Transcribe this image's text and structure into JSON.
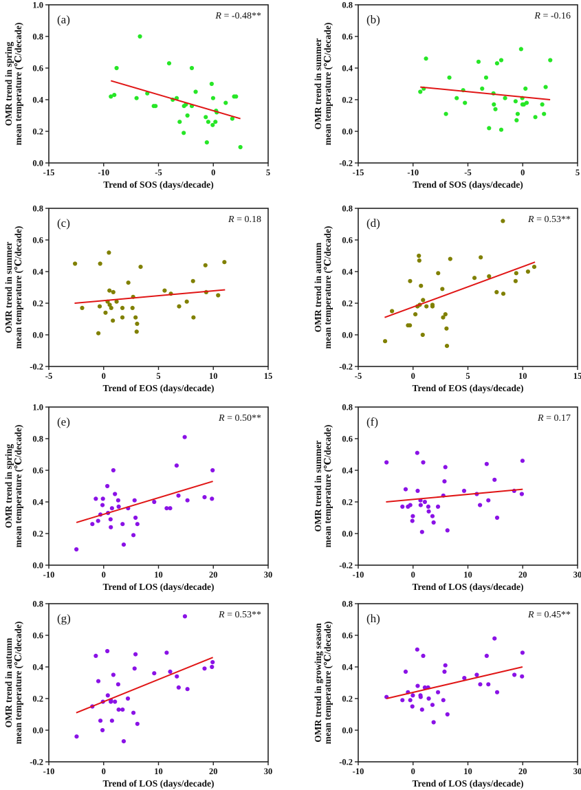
{
  "colors": {
    "green": "#27e627",
    "olive": "#808000",
    "purple": "#8a12e6",
    "fit_line": "#e01515"
  },
  "chart_data": [
    {
      "type": "scatter",
      "panel": "(a)",
      "r_symbol": "R",
      "r_value": " = -0.48**",
      "color": "green",
      "xlabel": "Trend of SOS (days/decade)",
      "ylabel": [
        "OMR trend in spring",
        "mean temperature (℃/decade)"
      ],
      "xlim": [
        -15,
        5
      ],
      "ylim": [
        0,
        1.0
      ],
      "xticks": [
        "-15",
        "-10",
        "-5",
        "0",
        "5"
      ],
      "yticks": [
        "0.0",
        "0.2",
        "0.4",
        "0.6",
        "0.8",
        "1.0"
      ],
      "fit_line": [
        [
          -9.34,
          0.52
        ],
        [
          2.47,
          0.28
        ]
      ],
      "points": [
        [
          -6.69,
          0.8
        ],
        [
          -8.82,
          0.6
        ],
        [
          -4.03,
          0.63
        ],
        [
          -1.96,
          0.6
        ],
        [
          -9.34,
          0.42
        ],
        [
          -9.03,
          0.43
        ],
        [
          -7.0,
          0.41
        ],
        [
          -6.02,
          0.44
        ],
        [
          -5.43,
          0.36
        ],
        [
          -5.27,
          0.36
        ],
        [
          -3.7,
          0.4
        ],
        [
          -3.34,
          0.41
        ],
        [
          -2.67,
          0.36
        ],
        [
          -2.5,
          0.37
        ],
        [
          -1.96,
          0.36
        ],
        [
          -1.61,
          0.45
        ],
        [
          -0.15,
          0.5
        ],
        [
          -0.02,
          0.41
        ],
        [
          -2.36,
          0.3
        ],
        [
          -3.07,
          0.26
        ],
        [
          -2.7,
          0.19
        ],
        [
          -0.69,
          0.29
        ],
        [
          -0.46,
          0.26
        ],
        [
          -0.06,
          0.24
        ],
        [
          0.19,
          0.26
        ],
        [
          0.25,
          0.33
        ],
        [
          0.31,
          0.32
        ],
        [
          -0.59,
          0.13
        ],
        [
          1.13,
          0.38
        ],
        [
          1.73,
          0.28
        ],
        [
          1.9,
          0.42
        ],
        [
          2.07,
          0.42
        ],
        [
          2.47,
          0.1
        ]
      ]
    },
    {
      "type": "scatter",
      "panel": "(b)",
      "r_symbol": "R",
      "r_value": " = -0.16",
      "color": "green",
      "xlabel": "Trend of SOS (days/decade)",
      "ylabel": [
        "OMR trend in summer",
        "mean temperature (℃/decade)"
      ],
      "xlim": [
        -15,
        5
      ],
      "ylim": [
        -0.2,
        0.8
      ],
      "xticks": [
        "-15",
        "-10",
        "-5",
        "0",
        "5"
      ],
      "yticks": [
        "-0.2",
        "0.0",
        "0.2",
        "0.4",
        "0.6",
        "0.8"
      ],
      "fit_line": [
        [
          -9.34,
          0.28
        ],
        [
          2.5,
          0.2
        ]
      ],
      "points": [
        [
          -8.82,
          0.46
        ],
        [
          -9.34,
          0.25
        ],
        [
          -9.03,
          0.27
        ],
        [
          -6.69,
          0.34
        ],
        [
          -7.0,
          0.11
        ],
        [
          -6.02,
          0.21
        ],
        [
          -5.43,
          0.26
        ],
        [
          -5.27,
          0.18
        ],
        [
          -4.03,
          0.44
        ],
        [
          -3.7,
          0.27
        ],
        [
          -3.34,
          0.34
        ],
        [
          -3.07,
          0.02
        ],
        [
          -2.67,
          0.24
        ],
        [
          -2.63,
          0.17
        ],
        [
          -2.49,
          0.14
        ],
        [
          -2.34,
          0.43
        ],
        [
          -1.96,
          0.45
        ],
        [
          -1.96,
          0.01
        ],
        [
          -1.61,
          0.21
        ],
        [
          -0.65,
          0.19
        ],
        [
          -0.15,
          0.52
        ],
        [
          -0.04,
          0.21
        ],
        [
          -0.02,
          0.17
        ],
        [
          0.1,
          0.17
        ],
        [
          0.36,
          0.18
        ],
        [
          0.25,
          0.27
        ],
        [
          -0.46,
          0.11
        ],
        [
          -0.56,
          0.07
        ],
        [
          1.15,
          0.09
        ],
        [
          1.78,
          0.17
        ],
        [
          1.94,
          0.11
        ],
        [
          2.09,
          0.28
        ],
        [
          2.51,
          0.45
        ]
      ]
    },
    {
      "type": "scatter",
      "panel": "(c)",
      "r_symbol": "R",
      "r_value": " = 0.18",
      "color": "olive",
      "xlabel": "Trend of EOS (days/decade)",
      "ylabel": [
        "OMR trend in summer",
        "mean temperature (℃/decade)"
      ],
      "xlim": [
        -5,
        15
      ],
      "ylim": [
        -0.2,
        0.8
      ],
      "xticks": [
        "-5",
        "0",
        "5",
        "10",
        "15"
      ],
      "yticks": [
        "-0.2",
        "0.0",
        "0.2",
        "0.4",
        "0.6",
        "0.8"
      ],
      "fit_line": [
        [
          -2.65,
          0.2
        ],
        [
          11.07,
          0.285
        ]
      ],
      "points": [
        [
          -2.61,
          0.45
        ],
        [
          -1.96,
          0.17
        ],
        [
          -0.32,
          0.45
        ],
        [
          -0.36,
          0.18
        ],
        [
          -0.48,
          0.01
        ],
        [
          0.17,
          0.14
        ],
        [
          0.48,
          0.52
        ],
        [
          0.53,
          0.28
        ],
        [
          0.88,
          0.27
        ],
        [
          0.36,
          0.21
        ],
        [
          0.55,
          0.19
        ],
        [
          0.69,
          0.17
        ],
        [
          0.84,
          0.09
        ],
        [
          1.18,
          0.21
        ],
        [
          1.71,
          0.17
        ],
        [
          1.71,
          0.11
        ],
        [
          2.25,
          0.33
        ],
        [
          2.63,
          0.17
        ],
        [
          2.69,
          0.24
        ],
        [
          2.91,
          0.11
        ],
        [
          3.05,
          0.07
        ],
        [
          3.01,
          0.02
        ],
        [
          3.37,
          0.43
        ],
        [
          5.56,
          0.28
        ],
        [
          6.13,
          0.26
        ],
        [
          6.88,
          0.18
        ],
        [
          7.58,
          0.21
        ],
        [
          8.15,
          0.34
        ],
        [
          8.19,
          0.11
        ],
        [
          9.28,
          0.44
        ],
        [
          9.35,
          0.27
        ],
        [
          10.44,
          0.25
        ],
        [
          11.01,
          0.46
        ]
      ]
    },
    {
      "type": "scatter",
      "panel": "(d)",
      "r_symbol": "R",
      "r_value": " = 0.53**",
      "color": "olive",
      "xlabel": "Trend of EOS (days/decade)",
      "ylabel": [
        "OMR trend in autumn",
        "mean temperature (℃/decade)"
      ],
      "xlim": [
        -5,
        15
      ],
      "ylim": [
        -0.2,
        0.8
      ],
      "xticks": [
        "-5",
        "0",
        "5",
        "10",
        "15"
      ],
      "yticks": [
        "-0.2",
        "0.0",
        "0.2",
        "0.4",
        "0.6",
        "0.8"
      ],
      "fit_line": [
        [
          -2.59,
          0.11
        ],
        [
          11.12,
          0.46
        ]
      ],
      "points": [
        [
          -2.55,
          -0.04
        ],
        [
          -1.92,
          0.15
        ],
        [
          -0.46,
          0.06
        ],
        [
          -0.29,
          0.06
        ],
        [
          -0.27,
          0.34
        ],
        [
          0.21,
          0.13
        ],
        [
          0.53,
          0.5
        ],
        [
          0.57,
          0.47
        ],
        [
          0.4,
          0.18
        ],
        [
          0.61,
          0.19
        ],
        [
          0.72,
          0.31
        ],
        [
          0.88,
          0.0
        ],
        [
          0.91,
          0.22
        ],
        [
          1.22,
          0.18
        ],
        [
          1.77,
          0.19
        ],
        [
          1.77,
          0.18
        ],
        [
          2.29,
          0.39
        ],
        [
          2.67,
          0.29
        ],
        [
          2.74,
          0.11
        ],
        [
          2.95,
          0.13
        ],
        [
          3.05,
          0.04
        ],
        [
          3.09,
          -0.07
        ],
        [
          3.39,
          0.48
        ],
        [
          5.6,
          0.36
        ],
        [
          6.17,
          0.49
        ],
        [
          6.93,
          0.37
        ],
        [
          7.62,
          0.27
        ],
        [
          8.23,
          0.26
        ],
        [
          8.19,
          0.72
        ],
        [
          9.35,
          0.34
        ],
        [
          9.41,
          0.39
        ],
        [
          10.48,
          0.4
        ],
        [
          11.05,
          0.43
        ]
      ]
    },
    {
      "type": "scatter",
      "panel": "(e)",
      "r_symbol": "R",
      "r_value": " = 0.50**",
      "color": "purple",
      "xlabel": "Trend of LOS (days/decade)",
      "ylabel": [
        "OMR trend in spring",
        "mean temperature (℃/decade)"
      ],
      "xlim": [
        -10,
        30
      ],
      "ylim": [
        0,
        1.0
      ],
      "xticks": [
        "-10",
        "0",
        "10",
        "20",
        "30"
      ],
      "yticks": [
        "0.0",
        "0.2",
        "0.4",
        "0.6",
        "0.8",
        "1.0"
      ],
      "fit_line": [
        [
          -4.97,
          0.27
        ],
        [
          19.92,
          0.53
        ]
      ],
      "points": [
        [
          -4.97,
          0.1
        ],
        [
          -2.06,
          0.26
        ],
        [
          -1.43,
          0.42
        ],
        [
          -1.01,
          0.28
        ],
        [
          -0.59,
          0.32
        ],
        [
          -0.21,
          0.38
        ],
        [
          -0.13,
          0.42
        ],
        [
          0.67,
          0.5
        ],
        [
          0.8,
          0.33
        ],
        [
          1.26,
          0.29
        ],
        [
          1.31,
          0.24
        ],
        [
          1.52,
          0.36
        ],
        [
          1.77,
          0.6
        ],
        [
          2.06,
          0.45
        ],
        [
          2.65,
          0.41
        ],
        [
          2.74,
          0.37
        ],
        [
          3.45,
          0.26
        ],
        [
          3.66,
          0.13
        ],
        [
          4.46,
          0.36
        ],
        [
          5.43,
          0.19
        ],
        [
          5.64,
          0.41
        ],
        [
          5.81,
          0.3
        ],
        [
          6.15,
          0.26
        ],
        [
          9.22,
          0.4
        ],
        [
          11.49,
          0.36
        ],
        [
          12.13,
          0.36
        ],
        [
          13.31,
          0.63
        ],
        [
          13.64,
          0.44
        ],
        [
          14.78,
          0.81
        ],
        [
          15.28,
          0.41
        ],
        [
          18.4,
          0.43
        ],
        [
          19.75,
          0.42
        ],
        [
          19.87,
          0.6
        ]
      ]
    },
    {
      "type": "scatter",
      "panel": "(f)",
      "r_symbol": "R",
      "r_value": " = 0.17",
      "color": "purple",
      "xlabel": "Trend of LOS (days/decade)",
      "ylabel": [
        "OMR trend in summer",
        "mean temperature (℃/decade)"
      ],
      "xlim": [
        -10,
        30
      ],
      "ylim": [
        -0.2,
        0.8
      ],
      "xticks": [
        "-10",
        "0",
        "10",
        "20",
        "30"
      ],
      "yticks": [
        "-0.2",
        "0.0",
        "0.2",
        "0.4",
        "0.6",
        "0.8"
      ],
      "fit_line": [
        [
          -4.93,
          0.2
        ],
        [
          20.0,
          0.28
        ]
      ],
      "points": [
        [
          -4.84,
          0.45
        ],
        [
          -1.94,
          0.17
        ],
        [
          -1.35,
          0.28
        ],
        [
          -0.93,
          0.17
        ],
        [
          -0.51,
          0.18
        ],
        [
          -0.04,
          0.11
        ],
        [
          -0.13,
          0.08
        ],
        [
          0.76,
          0.51
        ],
        [
          0.84,
          0.27
        ],
        [
          1.35,
          0.21
        ],
        [
          1.39,
          0.18
        ],
        [
          1.64,
          0.01
        ],
        [
          1.85,
          0.45
        ],
        [
          2.15,
          0.2
        ],
        [
          2.78,
          0.17
        ],
        [
          2.86,
          0.14
        ],
        [
          3.54,
          0.11
        ],
        [
          3.75,
          0.07
        ],
        [
          4.55,
          0.17
        ],
        [
          5.52,
          0.24
        ],
        [
          5.73,
          0.33
        ],
        [
          5.89,
          0.42
        ],
        [
          6.27,
          0.02
        ],
        [
          9.31,
          0.27
        ],
        [
          11.62,
          0.25
        ],
        [
          12.21,
          0.18
        ],
        [
          13.43,
          0.44
        ],
        [
          13.73,
          0.21
        ],
        [
          14.86,
          0.34
        ],
        [
          15.33,
          0.1
        ],
        [
          18.44,
          0.27
        ],
        [
          19.83,
          0.25
        ],
        [
          19.96,
          0.46
        ]
      ]
    },
    {
      "type": "scatter",
      "panel": "(g)",
      "r_symbol": "R",
      "r_value": " = 0.53**",
      "color": "purple",
      "xlabel": "Trend of LOS (days/decade)",
      "ylabel": [
        "OMR trend in autumn",
        "mean temperature (℃/decade)"
      ],
      "xlim": [
        -10,
        30
      ],
      "ylim": [
        -0.2,
        0.8
      ],
      "xticks": [
        "-10",
        "0",
        "10",
        "20",
        "30"
      ],
      "yticks": [
        "-0.2",
        "0.0",
        "0.2",
        "0.4",
        "0.6",
        "0.8"
      ],
      "fit_line": [
        [
          -5.0,
          0.11
        ],
        [
          19.92,
          0.46
        ]
      ],
      "points": [
        [
          -4.93,
          -0.04
        ],
        [
          -2.06,
          0.15
        ],
        [
          -1.43,
          0.47
        ],
        [
          -0.97,
          0.31
        ],
        [
          -0.59,
          0.06
        ],
        [
          -0.21,
          0.0
        ],
        [
          -0.13,
          0.18
        ],
        [
          0.67,
          0.5
        ],
        [
          0.76,
          0.22
        ],
        [
          1.31,
          0.19
        ],
        [
          1.31,
          0.18
        ],
        [
          1.52,
          0.06
        ],
        [
          1.77,
          0.35
        ],
        [
          2.06,
          0.18
        ],
        [
          2.65,
          0.29
        ],
        [
          2.74,
          0.13
        ],
        [
          3.45,
          0.13
        ],
        [
          3.66,
          -0.07
        ],
        [
          4.42,
          0.2
        ],
        [
          5.43,
          0.11
        ],
        [
          5.64,
          0.39
        ],
        [
          5.81,
          0.48
        ],
        [
          6.15,
          0.04
        ],
        [
          9.22,
          0.36
        ],
        [
          11.49,
          0.49
        ],
        [
          12.13,
          0.37
        ],
        [
          13.35,
          0.34
        ],
        [
          13.68,
          0.27
        ],
        [
          14.82,
          0.72
        ],
        [
          15.28,
          0.26
        ],
        [
          18.4,
          0.39
        ],
        [
          19.75,
          0.4
        ],
        [
          19.87,
          0.43
        ]
      ]
    },
    {
      "type": "scatter",
      "panel": "(h)",
      "r_symbol": "R",
      "r_value": " = 0.45**",
      "color": "purple",
      "xlabel": "Trend of LOS (days/decade)",
      "ylabel": [
        "OMR trend in growing season",
        "mean temperature (℃/decade)"
      ],
      "xlim": [
        -10,
        30
      ],
      "ylim": [
        -0.2,
        0.8
      ],
      "xticks": [
        "-10",
        "0",
        "10",
        "20",
        "30"
      ],
      "yticks": [
        "-0.2",
        "0.0",
        "0.2",
        "0.4",
        "0.6",
        "0.8"
      ],
      "fit_line": [
        [
          -4.84,
          0.2
        ],
        [
          19.96,
          0.4
        ]
      ],
      "points": [
        [
          -4.84,
          0.21
        ],
        [
          -1.94,
          0.19
        ],
        [
          -1.35,
          0.37
        ],
        [
          -0.93,
          0.24
        ],
        [
          -0.51,
          0.19
        ],
        [
          -0.13,
          0.15
        ],
        [
          -0.04,
          0.22
        ],
        [
          0.76,
          0.51
        ],
        [
          0.84,
          0.28
        ],
        [
          1.35,
          0.22
        ],
        [
          1.39,
          0.21
        ],
        [
          1.64,
          0.13
        ],
        [
          1.85,
          0.47
        ],
        [
          2.15,
          0.27
        ],
        [
          2.74,
          0.27
        ],
        [
          2.86,
          0.2
        ],
        [
          3.54,
          0.16
        ],
        [
          3.75,
          0.05
        ],
        [
          4.55,
          0.24
        ],
        [
          5.52,
          0.19
        ],
        [
          5.73,
          0.37
        ],
        [
          5.89,
          0.41
        ],
        [
          6.27,
          0.1
        ],
        [
          9.35,
          0.33
        ],
        [
          11.62,
          0.35
        ],
        [
          12.25,
          0.29
        ],
        [
          13.43,
          0.47
        ],
        [
          13.73,
          0.29
        ],
        [
          14.86,
          0.58
        ],
        [
          15.33,
          0.24
        ],
        [
          18.48,
          0.35
        ],
        [
          19.87,
          0.34
        ],
        [
          19.96,
          0.49
        ]
      ]
    }
  ]
}
